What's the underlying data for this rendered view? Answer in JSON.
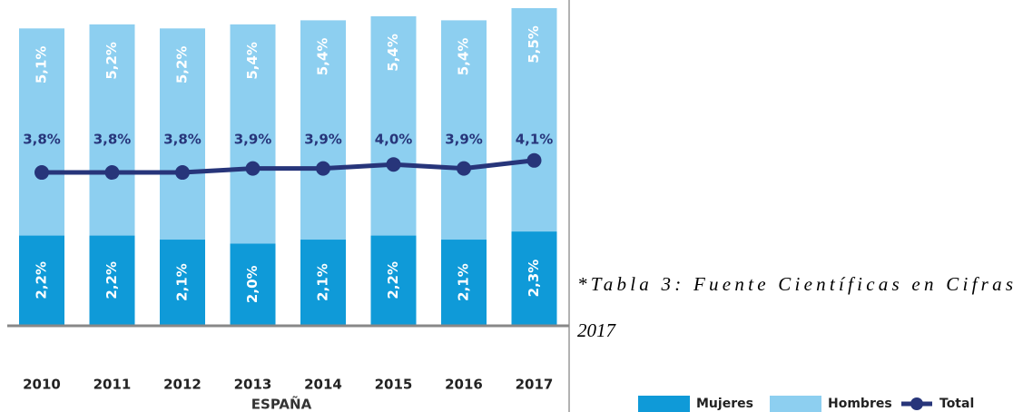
{
  "chart_data": {
    "type": "stacked-bar-line",
    "x_label": "ESPAÑA",
    "categories": [
      "2010",
      "2011",
      "2012",
      "2013",
      "2014",
      "2015",
      "2016",
      "2017"
    ],
    "series": [
      {
        "name": "Mujeres",
        "color": "#0f9ad8",
        "values": [
          2.2,
          2.2,
          2.1,
          2.0,
          2.1,
          2.2,
          2.1,
          2.3
        ],
        "value_labels": [
          "2,2%",
          "2,2%",
          "2,1%",
          "2,0%",
          "2,1%",
          "2,2%",
          "2,1%",
          "2,3%"
        ]
      },
      {
        "name": "Hombres",
        "color": "#8dcff0",
        "values": [
          5.1,
          5.2,
          5.2,
          5.4,
          5.4,
          5.4,
          5.4,
          5.5
        ],
        "value_labels": [
          "5,1%",
          "5,2%",
          "5,2%",
          "5,4%",
          "5,4%",
          "5,4%",
          "5,4%",
          "5,5%"
        ]
      },
      {
        "name": "Total",
        "color": "#27357a",
        "axis": "y2",
        "values": [
          3.8,
          3.8,
          3.8,
          3.9,
          3.9,
          4.0,
          3.9,
          4.1
        ],
        "value_labels": [
          "3,8%",
          "3,8%",
          "3,8%",
          "3,9%",
          "3,9%",
          "4,0%",
          "3,9%",
          "4,1%"
        ]
      }
    ],
    "ylim": [
      0,
      8
    ],
    "y2lim": [
      0,
      8.1
    ],
    "legend": "bottom-right"
  },
  "caption": {
    "lines": [
      "*Tabla 3: Fuente Científicas en Cifras",
      "2017"
    ]
  }
}
